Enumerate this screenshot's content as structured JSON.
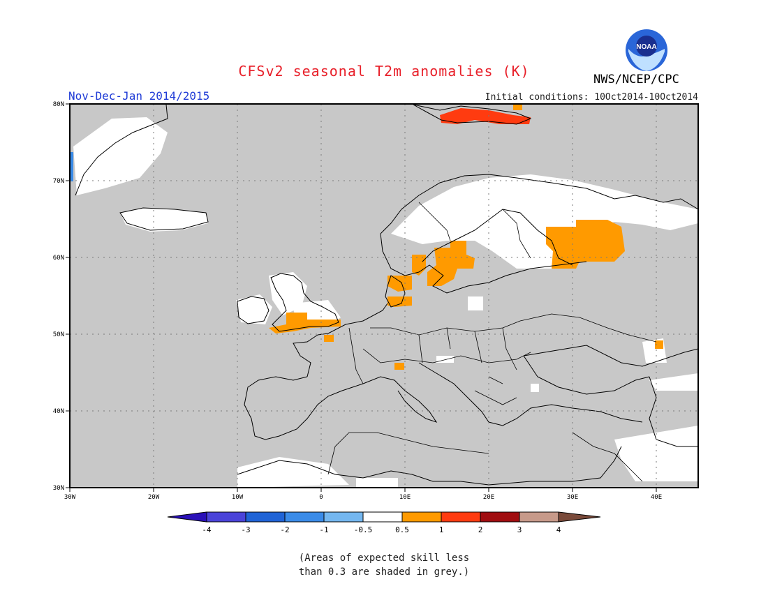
{
  "header": {
    "title": "CFSv2 seasonal T2m anomalies (K)",
    "period": "Nov-Dec-Jan 2014/2015",
    "initial_conditions": "Initial conditions: 10Oct2014-10Oct2014",
    "agency": "NWS/NCEP/CPC",
    "logo_text": "NOAA"
  },
  "map": {
    "region": "Europe",
    "lon_range": [
      -30,
      45
    ],
    "lat_range": [
      30,
      80
    ],
    "lon_ticks": [
      "30W",
      "20W",
      "10W",
      "0",
      "10E",
      "20E",
      "30E",
      "40E"
    ],
    "lat_ticks": [
      "30N",
      "40N",
      "50N",
      "60N",
      "70N",
      "80N"
    ],
    "grid": "dotted",
    "unit": "K",
    "colors": {
      "no_skill": "#c8c8c8",
      "neutral": "#ffffff",
      "warm_0.5_1": "#ff9a00",
      "warm_1_2": "#ff3b10",
      "coast": "#000000"
    },
    "anomaly_regions": [
      {
        "name": "Svalbard",
        "class": "1 to 2",
        "color": "#ff3b10"
      },
      {
        "name": "Southern Sweden",
        "class": "0.5 to 1",
        "color": "#ff9a00"
      },
      {
        "name": "Western Russia / Karelia",
        "class": "0.5 to 1",
        "color": "#ff9a00"
      },
      {
        "name": "Southern England",
        "class": "0.5 to 1",
        "color": "#ff9a00"
      },
      {
        "name": "Denmark",
        "class": "0.5 to 1",
        "color": "#ff9a00"
      }
    ]
  },
  "colorbar": {
    "labels": [
      "-4",
      "-3",
      "-2",
      "-1",
      "-0.5",
      "0.5",
      "1",
      "2",
      "3",
      "4"
    ],
    "colors": [
      "#2a10b8",
      "#4a43d9",
      "#1f63d6",
      "#3a8be8",
      "#74b7f0",
      "#ffffff",
      "#ff9a00",
      "#ff3b10",
      "#a00d10",
      "#c79a8a",
      "#7a4a3a"
    ]
  },
  "footnote": {
    "line1": "(Areas of expected skill less",
    "line2": "than 0.3 are shaded in grey.)"
  }
}
